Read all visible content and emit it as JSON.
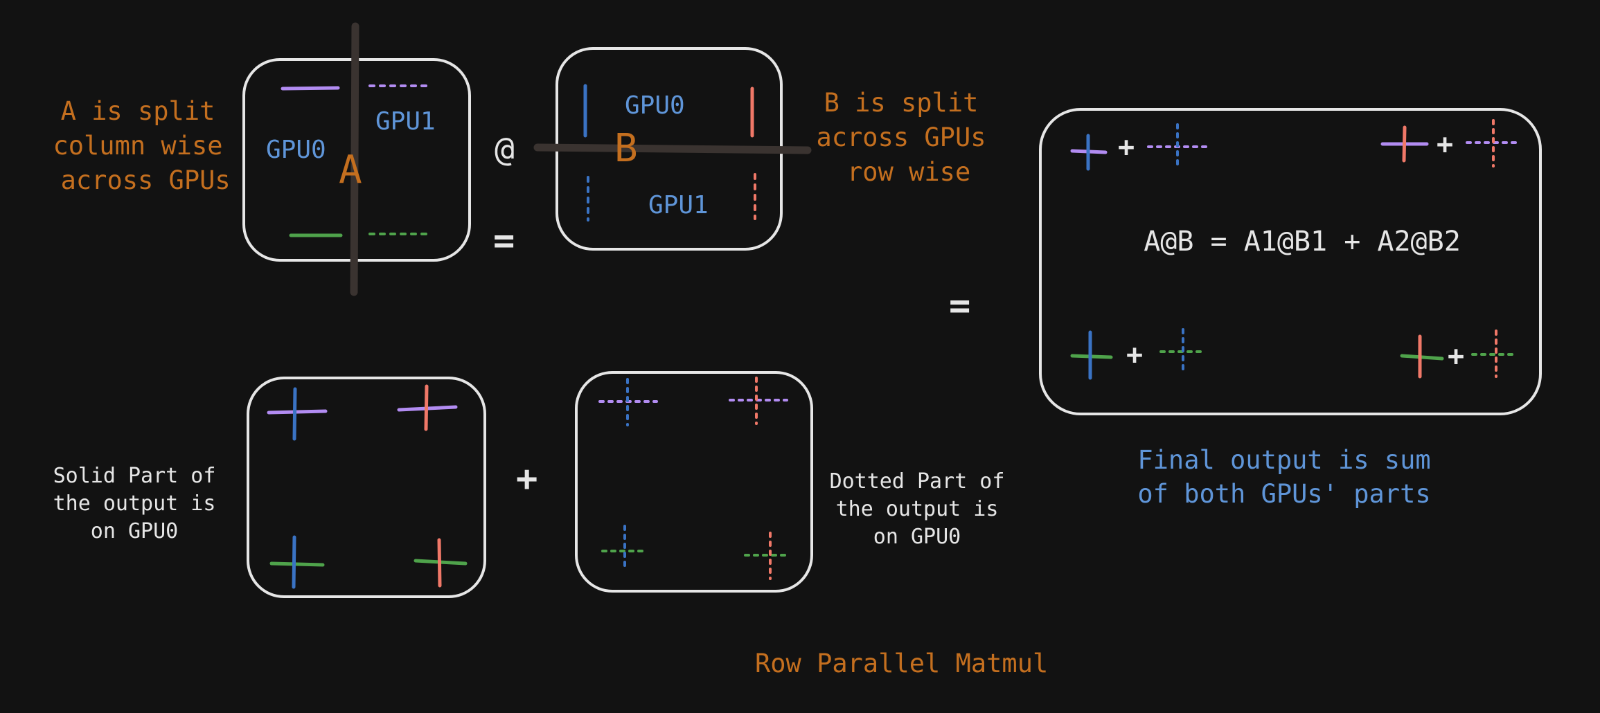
{
  "labels": {
    "a_split": "A is split\ncolumn wise\n across GPUs",
    "b_split": "B is split\nacross GPUs\n row wise",
    "solid_part": "Solid Part of\nthe output is\non GPU0",
    "dotted_part": "Dotted Part of\nthe output is\non GPU0",
    "final_output": "Final output is sum\nof both GPUs' parts",
    "title": "Row Parallel Matmul",
    "equation": "A@B = A1@B1 + A2@B2"
  },
  "matrix_a": {
    "name": "A",
    "gpu0": "GPU0",
    "gpu1": "GPU1"
  },
  "matrix_b": {
    "name": "B",
    "gpu0": "GPU0",
    "gpu1": "GPU1"
  },
  "operators": {
    "matmul": "@",
    "equals": "=",
    "plus": "+"
  },
  "colors": {
    "background": "#121212",
    "orange": "#c46f1f",
    "blue_text": "#5f95d8",
    "purple": "#b28cf2",
    "green": "#4fa34b",
    "dark_blue": "#3a73c4",
    "red": "#f07868",
    "box": "#e6e6e6",
    "divider": "#3a3330"
  }
}
